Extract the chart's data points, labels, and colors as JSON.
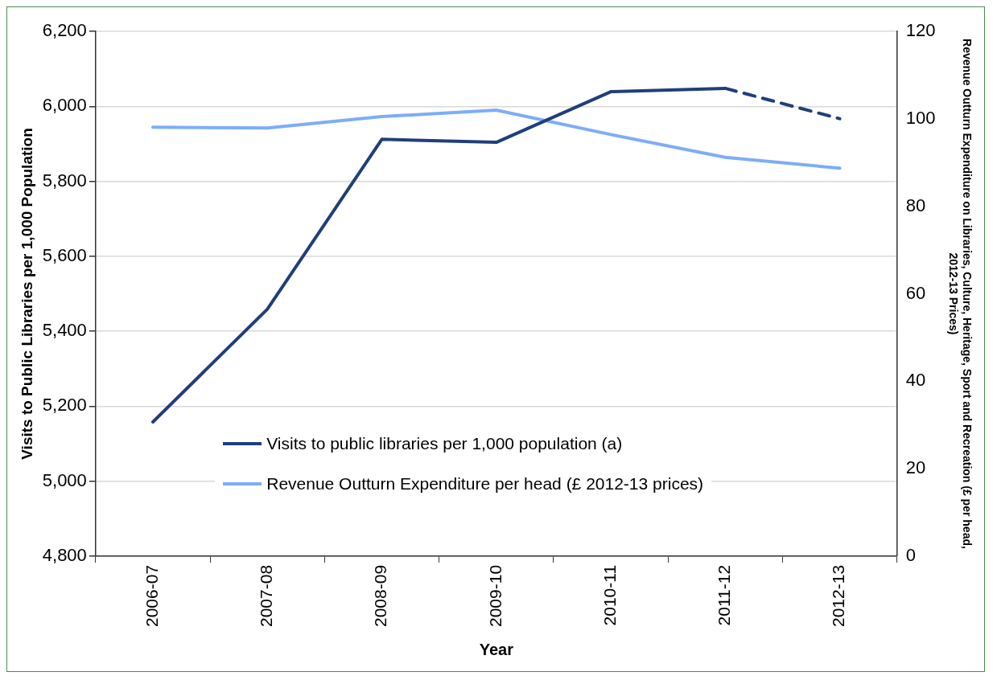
{
  "chart_data": {
    "type": "line",
    "xlabel": "Year",
    "ylabel": "Visits to Public Libraries per 1,000 Population",
    "y2label": "Revenue Outturn Expenditure on Libraries, Culture, Heritage, Sport and Recreation (£ per head, 2012-13 Prices)",
    "categories": [
      "2006-07",
      "2007-08",
      "2008-09",
      "2009-10",
      "2010-11",
      "2011-12",
      "2012-13"
    ],
    "series": [
      {
        "name": "Visits to public libraries per 1,000 population (a)",
        "color": "#203f7a",
        "line_style": "solid",
        "values": [
          5158,
          5459,
          5912,
          5904,
          6039,
          6048,
          null
        ]
      },
      {
        "color": "#203f7a",
        "line_style": "dashed",
        "values": [
          null,
          null,
          null,
          null,
          null,
          6048,
          5967
        ]
      },
      {
        "name": "Revenue Outturn Expenditure per head (£ 2012-13 prices)",
        "color": "#7eadf8",
        "axis": "y2",
        "line_style": "solid",
        "values": [
          98.1,
          97.9,
          100.5,
          102,
          96.4,
          91.2,
          88.7
        ]
      }
    ],
    "ylim": [
      4800,
      6200
    ],
    "yticks": [
      {
        "value": 4800,
        "label": "4,800"
      },
      {
        "value": 5000,
        "label": "5,000"
      },
      {
        "value": 5200,
        "label": "5,200"
      },
      {
        "value": 5400,
        "label": "5,400"
      },
      {
        "value": 5600,
        "label": "5,600"
      },
      {
        "value": 5800,
        "label": "5,800"
      },
      {
        "value": 6000,
        "label": "6,000"
      },
      {
        "value": 6200,
        "label": "6,200"
      }
    ],
    "y2lim": [
      0,
      120
    ],
    "y2ticks": [
      0,
      20,
      40,
      60,
      80,
      100,
      120
    ],
    "grid": "y",
    "legend": "bottom"
  }
}
